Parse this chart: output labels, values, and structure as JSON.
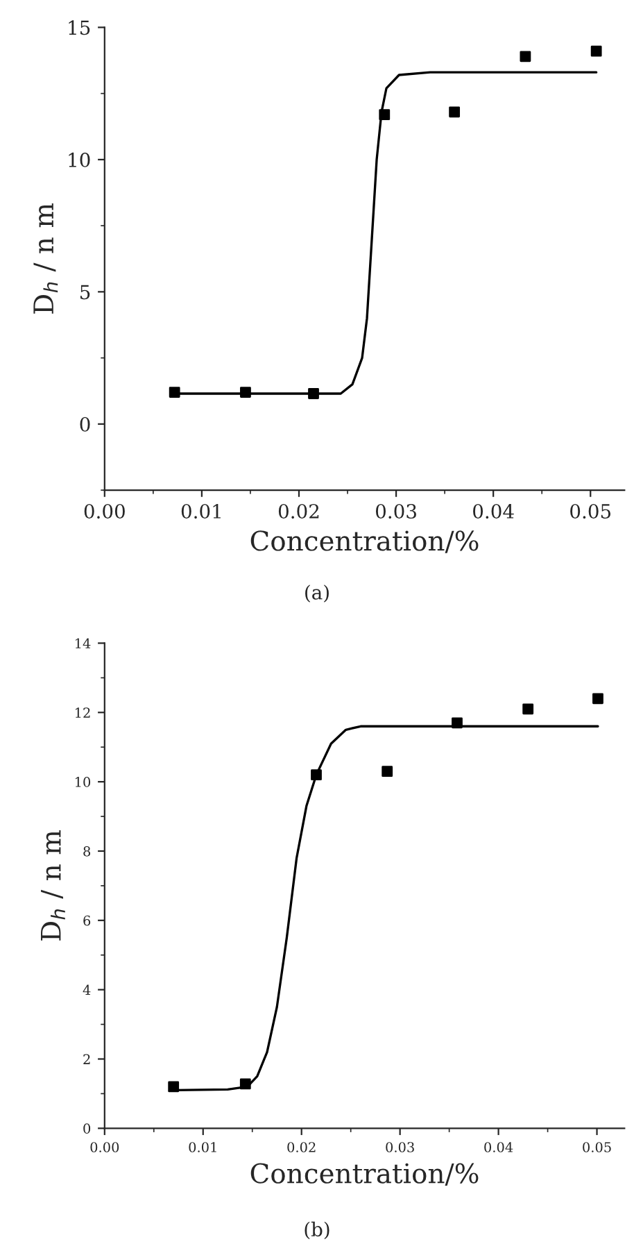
{
  "chart_data": [
    {
      "type": "scatter",
      "xlabel": "Concentration/%",
      "ylabel": "D$_{h}$ / n m",
      "annotations": [
        "(a)"
      ],
      "marker": "square",
      "grid": false,
      "legend": false,
      "xlim": [
        0,
        0.0535
      ],
      "ylim": [
        -2.5,
        15
      ],
      "xticks": [
        {
          "value": 0,
          "label": "0.00"
        },
        {
          "value": 0.01,
          "label": "0.01"
        },
        {
          "value": 0.02,
          "label": "0.02"
        },
        {
          "value": 0.03,
          "label": "0.03"
        },
        {
          "value": 0.04,
          "label": "0.04"
        },
        {
          "value": 0.05,
          "label": "0.05"
        }
      ],
      "yticks": [
        0,
        5,
        10,
        15
      ],
      "series": [
        {
          "color": "#000000",
          "x": [
            0.0072,
            0.0145,
            0.0215,
            0.0288,
            0.036,
            0.0433,
            0.0506
          ],
          "values": [
            1.2,
            1.2,
            1.15,
            11.7,
            11.8,
            13.9,
            14.1
          ]
        },
        {
          "type": "line",
          "color": "#000000",
          "marker": "none",
          "x": [
            0.0072,
            0.0243,
            0.0255,
            0.0265,
            0.027,
            0.0275,
            0.028,
            0.0285,
            0.029,
            0.0303,
            0.0335,
            0.0506
          ],
          "values": [
            1.15,
            1.15,
            1.5,
            2.5,
            4,
            7,
            10,
            11.8,
            12.7,
            13.2,
            13.3,
            13.3
          ]
        }
      ]
    },
    {
      "type": "scatter",
      "xlabel": "Concentration/%",
      "ylabel": "D$_{h}$ / n m",
      "annotations": [
        "(b)"
      ],
      "marker": "square",
      "grid": false,
      "legend": false,
      "xlim": [
        0,
        0.0528
      ],
      "ylim": [
        0,
        14
      ],
      "xticks": [
        {
          "value": 0,
          "label": "0.00"
        },
        {
          "value": 0.01,
          "label": "0.01"
        },
        {
          "value": 0.02,
          "label": "0.02"
        },
        {
          "value": 0.03,
          "label": "0.03"
        },
        {
          "value": 0.04,
          "label": "0.04"
        },
        {
          "value": 0.05,
          "label": "0.05"
        }
      ],
      "yticks": [
        0,
        2,
        4,
        6,
        8,
        10,
        12,
        14
      ],
      "series": [
        {
          "color": "#000000",
          "x": [
            0.007,
            0.0143,
            0.0215,
            0.0287,
            0.0358,
            0.043,
            0.0501
          ],
          "values": [
            1.2,
            1.28,
            10.2,
            10.3,
            11.7,
            12.1,
            12.4
          ]
        },
        {
          "type": "line",
          "color": "#000000",
          "marker": "none",
          "x": [
            0.007,
            0.0125,
            0.0145,
            0.0155,
            0.0165,
            0.0175,
            0.0185,
            0.0195,
            0.0205,
            0.0215,
            0.023,
            0.0245,
            0.026,
            0.0501
          ],
          "values": [
            1.1,
            1.12,
            1.2,
            1.5,
            2.2,
            3.5,
            5.5,
            7.8,
            9.3,
            10.2,
            11.1,
            11.5,
            11.6,
            11.6
          ]
        }
      ]
    }
  ]
}
